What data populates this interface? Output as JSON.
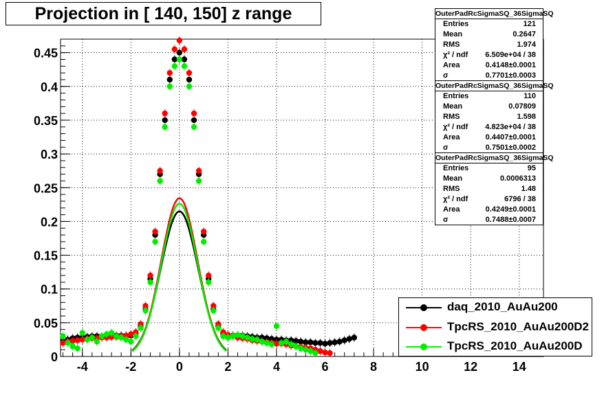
{
  "chart_data": {
    "type": "scatter",
    "title": "Projection in [ 140, 150] z range",
    "xlabel": "",
    "ylabel": "",
    "xlim": [
      -4.9,
      15.0
    ],
    "ylim": [
      0,
      0.47
    ],
    "x_ticks": [
      "-4",
      "-2",
      "0",
      "2",
      "4",
      "6",
      "8",
      "10",
      "12",
      "14"
    ],
    "y_ticks": [
      "0",
      "0.05",
      "0.1",
      "0.15",
      "0.2",
      "0.25",
      "0.3",
      "0.35",
      "0.4",
      "0.45"
    ],
    "grid": true,
    "legend_position": "bottom-right",
    "series": [
      {
        "name": "daq_2010_AuAu200",
        "color": "#000000",
        "x": [
          -4.8,
          -4.6,
          -4.4,
          -4.2,
          -4.0,
          -3.8,
          -3.6,
          -3.4,
          -3.2,
          -3.0,
          -2.8,
          -2.6,
          -2.4,
          -2.2,
          -2.0,
          -1.8,
          -1.6,
          -1.4,
          -1.2,
          -1.0,
          -0.8,
          -0.6,
          -0.4,
          -0.2,
          0.0,
          0.2,
          0.4,
          0.6,
          0.8,
          1.0,
          1.2,
          1.4,
          1.6,
          1.8,
          2.0,
          2.2,
          2.4,
          2.6,
          2.8,
          3.0,
          3.2,
          3.4,
          3.6,
          3.8,
          4.0,
          4.2,
          4.4,
          4.6,
          4.8,
          5.0,
          5.2,
          5.4,
          5.6,
          5.8,
          6.0,
          6.2,
          6.4,
          6.6,
          6.8,
          7.0,
          7.2
        ],
        "y": [
          0.022,
          0.025,
          0.027,
          0.028,
          0.028,
          0.029,
          0.03,
          0.03,
          0.03,
          0.031,
          0.031,
          0.031,
          0.031,
          0.03,
          0.031,
          0.034,
          0.045,
          0.07,
          0.115,
          0.18,
          0.27,
          0.35,
          0.41,
          0.44,
          0.45,
          0.44,
          0.41,
          0.35,
          0.27,
          0.18,
          0.115,
          0.07,
          0.045,
          0.034,
          0.031,
          0.031,
          0.03,
          0.031,
          0.03,
          0.029,
          0.028,
          0.028,
          0.027,
          0.026,
          0.025,
          0.025,
          0.024,
          0.024,
          0.023,
          0.022,
          0.021,
          0.021,
          0.02,
          0.02,
          0.019,
          0.02,
          0.021,
          0.022,
          0.024,
          0.026,
          0.028
        ]
      },
      {
        "name": "TpcRS_2010_AuAu200D2",
        "color": "#ff0000",
        "x": [
          -4.8,
          -4.6,
          -4.4,
          -4.2,
          -4.0,
          -3.8,
          -3.6,
          -3.4,
          -3.2,
          -3.0,
          -2.8,
          -2.6,
          -2.4,
          -2.2,
          -2.0,
          -1.8,
          -1.6,
          -1.4,
          -1.2,
          -1.0,
          -0.8,
          -0.6,
          -0.4,
          -0.2,
          0.0,
          0.2,
          0.4,
          0.6,
          0.8,
          1.0,
          1.2,
          1.4,
          1.6,
          1.8,
          2.0,
          2.2,
          2.4,
          2.6,
          2.8,
          3.0,
          3.2,
          3.4,
          3.6,
          3.8,
          4.0,
          4.2,
          4.4,
          4.6,
          4.8,
          5.0,
          5.2,
          5.4,
          5.6,
          5.8,
          6.0,
          6.2
        ],
        "y": [
          0.02,
          0.022,
          0.023,
          0.024,
          0.025,
          0.026,
          0.027,
          0.027,
          0.028,
          0.028,
          0.029,
          0.029,
          0.03,
          0.031,
          0.033,
          0.036,
          0.048,
          0.075,
          0.12,
          0.185,
          0.275,
          0.36,
          0.42,
          0.455,
          0.468,
          0.455,
          0.42,
          0.36,
          0.275,
          0.185,
          0.12,
          0.075,
          0.048,
          0.036,
          0.032,
          0.03,
          0.028,
          0.027,
          0.026,
          0.024,
          0.023,
          0.022,
          0.021,
          0.02,
          0.019,
          0.019,
          0.018,
          0.016,
          0.015,
          0.014,
          0.013,
          0.012,
          0.01,
          0.008,
          0.006,
          0.005
        ]
      },
      {
        "name": "TpcRS_2010_AuAu200D",
        "color": "#00ee00",
        "x": [
          -4.8,
          -4.6,
          -4.4,
          -4.2,
          -4.0,
          -3.8,
          -3.6,
          -3.4,
          -3.2,
          -3.0,
          -2.8,
          -2.6,
          -2.4,
          -2.2,
          -2.0,
          -1.8,
          -1.6,
          -1.4,
          -1.2,
          -1.0,
          -0.8,
          -0.6,
          -0.4,
          -0.2,
          0.0,
          0.2,
          0.4,
          0.6,
          0.8,
          1.0,
          1.2,
          1.4,
          1.6,
          1.8,
          2.0,
          2.2,
          2.4,
          2.6,
          2.8,
          3.0,
          3.2,
          3.4,
          3.6,
          3.8,
          4.0,
          4.2,
          4.4,
          4.6,
          4.8,
          5.0,
          5.2,
          5.4,
          5.6
        ],
        "y": [
          0.03,
          0.02,
          0.015,
          0.012,
          0.035,
          0.025,
          0.028,
          0.022,
          0.03,
          0.033,
          0.035,
          0.03,
          0.028,
          0.025,
          0.022,
          0.03,
          0.042,
          0.068,
          0.11,
          0.17,
          0.26,
          0.34,
          0.4,
          0.43,
          0.44,
          0.43,
          0.4,
          0.34,
          0.26,
          0.17,
          0.11,
          0.068,
          0.042,
          0.03,
          0.028,
          0.03,
          0.032,
          0.03,
          0.028,
          0.026,
          0.025,
          0.022,
          0.02,
          0.018,
          0.045,
          0.02,
          0.022,
          0.018,
          0.015,
          0.012,
          0.01,
          0.008,
          0.005
        ]
      }
    ],
    "fit_curves": [
      {
        "color": "#000000",
        "norm": 0.4148,
        "sigma": 0.7701
      },
      {
        "color": "#ff0000",
        "norm": 0.4407,
        "sigma": 0.7501
      },
      {
        "color": "#00ee00",
        "norm": 0.4249,
        "sigma": 0.7488
      }
    ]
  },
  "stats": [
    {
      "title": "OuterPadRcSigmaSQ_36SigmaSQ",
      "rows": [
        [
          "Entries",
          "121"
        ],
        [
          "Mean",
          "0.2647"
        ],
        [
          "RMS",
          "1.974"
        ],
        [
          "χ² / ndf",
          "6.509e+04 / 38"
        ],
        [
          "Area",
          "0.4148±0.0001"
        ],
        [
          "σ",
          "0.7701±0.0003"
        ]
      ]
    },
    {
      "title": "OuterPadRcSigmaSQ_36SigmaSQ",
      "rows": [
        [
          "Entries",
          "110"
        ],
        [
          "Mean",
          "0.07809"
        ],
        [
          "RMS",
          "1.598"
        ],
        [
          "χ² / ndf",
          "4.823e+04 / 38"
        ],
        [
          "Area",
          "0.4407±0.0001"
        ],
        [
          "σ",
          "0.7501±0.0002"
        ]
      ]
    },
    {
      "title": "OuterPadRcSigmaSQ_36SigmaSQ",
      "rows": [
        [
          "Entries",
          "95"
        ],
        [
          "Mean",
          "0.0006313"
        ],
        [
          "RMS",
          "1.48"
        ],
        [
          "χ² / ndf",
          "6796 / 38"
        ],
        [
          "Area",
          "0.4249±0.0001"
        ],
        [
          "σ",
          "0.7488±0.0007"
        ]
      ]
    }
  ]
}
